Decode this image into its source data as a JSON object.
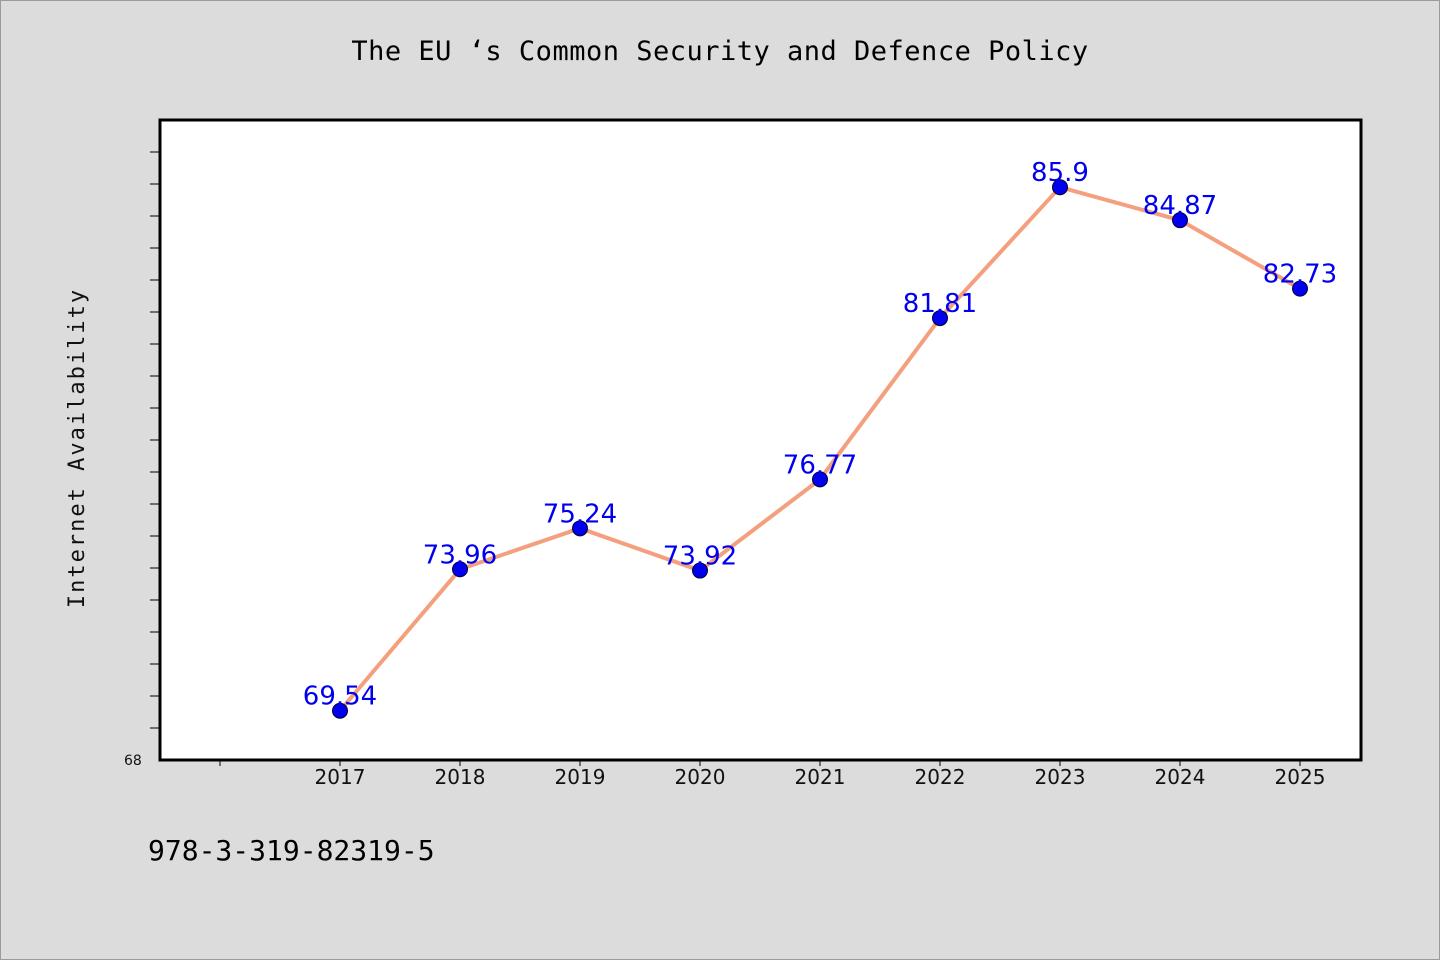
{
  "chart_data": {
    "type": "line",
    "title": "The EU ‘s Common Security and Defence Policy",
    "xlabel": "",
    "ylabel": "Internet Availability",
    "categories": [
      "2017",
      "2018",
      "2019",
      "2020",
      "2021",
      "2022",
      "2023",
      "2024",
      "2025"
    ],
    "series": [
      {
        "values": [
          69.54,
          73.96,
          75.24,
          73.92,
          76.77,
          81.81,
          85.9,
          84.87,
          82.73
        ],
        "labels": [
          "69.54",
          "73.96",
          "75.24",
          "73.92",
          "76.77",
          "81.81",
          "85.9",
          "84.87",
          "82.73"
        ]
      }
    ],
    "ylim": [
      68,
      88
    ],
    "y_tick_label": "68",
    "grid": false,
    "legend": "none",
    "colors": {
      "line": "#f4a07e",
      "marker": "#0000ee",
      "data_label": "#0000ee",
      "plot_background": "#ffffff",
      "figure_background": "#dcdcdc"
    }
  },
  "footer": {
    "note": "978-3-319-82319-5"
  }
}
